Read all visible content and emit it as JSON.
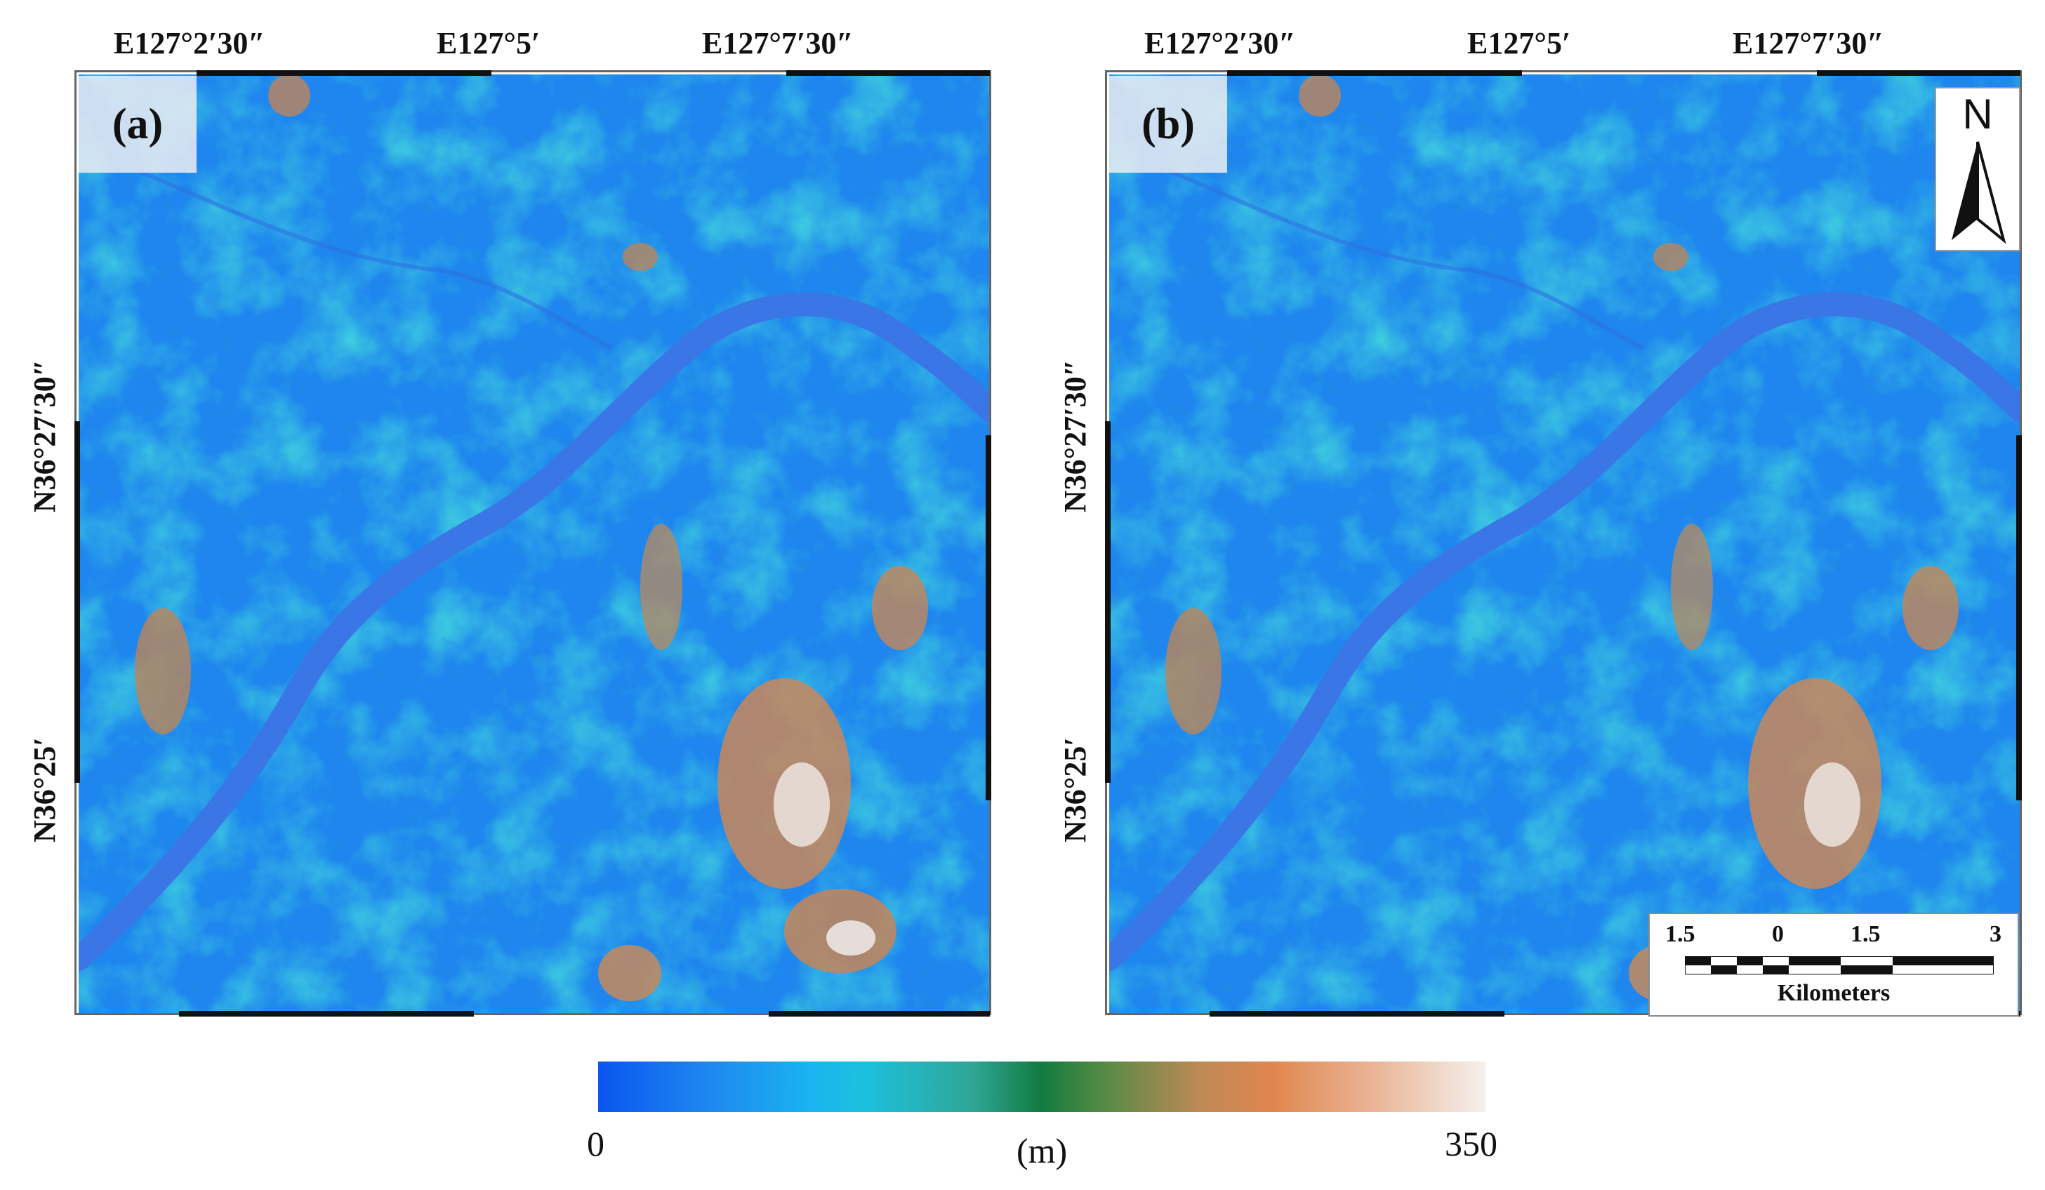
{
  "panels": [
    {
      "letter": "(a)",
      "lon_labels": [
        "E127°2′30″",
        "E127°5′",
        "E127°7′30″"
      ],
      "lat_labels": [
        "N36°27′30″",
        "N36°25′"
      ]
    },
    {
      "letter": "(b)",
      "lon_labels": [
        "E127°2′30″",
        "E127°5′",
        "E127°7′30″"
      ],
      "lat_labels": [
        "N36°27′30″",
        "N36°25′"
      ],
      "north_arrow": "N",
      "scale_bar": {
        "ticks": [
          "1.5",
          "0",
          "1.5",
          "3"
        ],
        "unit": "Kilometers"
      }
    }
  ],
  "legend": {
    "min": "0",
    "max": "350",
    "unit": "(m)",
    "colors": [
      "#0a55ee",
      "#1ab4f0",
      "#2fa698",
      "#127a40",
      "#e0864f",
      "#f5f1ec"
    ]
  },
  "icons": {
    "north": "north-arrow-icon",
    "scale": "scale-bar-icon"
  }
}
